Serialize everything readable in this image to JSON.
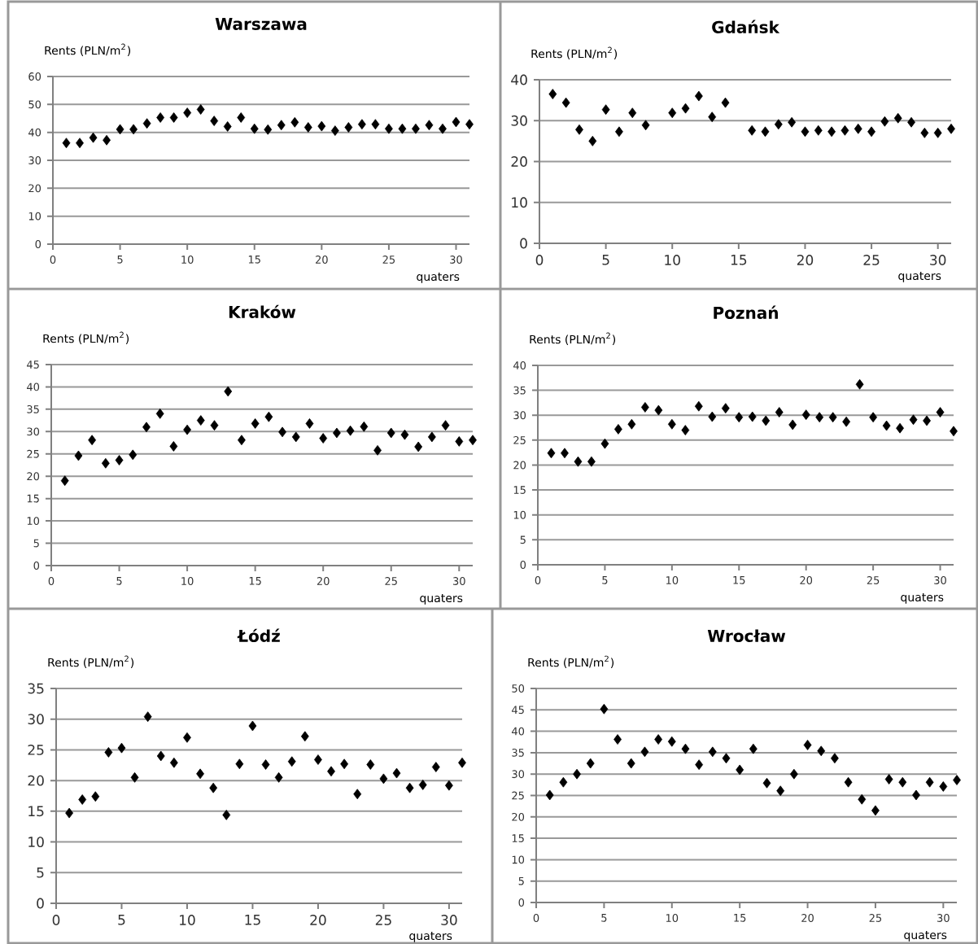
{
  "chart_data": [
    {
      "type": "scatter",
      "title": "Warszawa",
      "ylabel": "Rents (PLN/m$^{2}$)",
      "xlabel": "quaters",
      "color": "#000000",
      "marker": "diamond",
      "grid": "y",
      "xlim": [
        0,
        31
      ],
      "xticks": [
        0,
        5,
        10,
        15,
        20,
        25,
        30
      ],
      "ylim": [
        0,
        60
      ],
      "yticks": [
        0,
        10,
        20,
        30,
        40,
        50,
        60
      ],
      "x": [
        1,
        2,
        3,
        4,
        5,
        6,
        7,
        8,
        9,
        10,
        11,
        12,
        13,
        14,
        15,
        16,
        17,
        18,
        19,
        20,
        21,
        22,
        23,
        24,
        25,
        26,
        27,
        28,
        29,
        30,
        31
      ],
      "values": [
        36.2,
        36.2,
        38.1,
        37.2,
        41.1,
        41.1,
        43.2,
        45.3,
        45.3,
        47.0,
        48.2,
        44.1,
        42.1,
        45.3,
        41.3,
        41.0,
        42.6,
        43.6,
        41.8,
        42.2,
        40.6,
        41.8,
        42.9,
        42.9,
        41.3,
        41.3,
        41.3,
        42.6,
        41.3,
        43.7,
        42.9
      ]
    },
    {
      "type": "scatter",
      "title": "Gdańsk",
      "ylabel": "Rents (PLN/m$^{2}$)",
      "xlabel": "quaters",
      "color": "#000000",
      "marker": "diamond",
      "grid": "y",
      "xlim": [
        0,
        31
      ],
      "xticks": [
        0,
        5,
        10,
        15,
        20,
        25,
        30
      ],
      "ylim": [
        0,
        40
      ],
      "yticks": [
        0,
        10,
        20,
        30,
        40
      ],
      "x": [
        1,
        2,
        3,
        4,
        5,
        6,
        7,
        8,
        9,
        10,
        11,
        12,
        13,
        14,
        15,
        16,
        17,
        18,
        19,
        20,
        21,
        22,
        23,
        24,
        25,
        26,
        27,
        28,
        29,
        30,
        31
      ],
      "values": [
        36.5,
        34.4,
        27.8,
        25.0,
        32.7,
        27.3,
        31.9,
        28.9,
        null,
        31.9,
        33.0,
        36.0,
        30.9,
        34.4,
        null,
        27.6,
        27.3,
        29.1,
        29.6,
        27.3,
        27.6,
        27.3,
        27.6,
        28.0,
        27.3,
        29.8,
        30.6,
        29.6,
        27.0,
        27.0,
        28.0
      ]
    },
    {
      "type": "scatter",
      "title": "Kraków",
      "ylabel": "Rents (PLN/m$^{2}$)",
      "xlabel": "quaters",
      "color": "#000000",
      "marker": "diamond",
      "grid": "y",
      "xlim": [
        0,
        31
      ],
      "xticks": [
        0,
        5,
        10,
        15,
        20,
        25,
        30
      ],
      "ylim": [
        0,
        45
      ],
      "yticks": [
        0,
        5,
        10,
        15,
        20,
        25,
        30,
        35,
        40,
        45
      ],
      "x": [
        1,
        2,
        3,
        4,
        5,
        6,
        7,
        8,
        9,
        10,
        11,
        12,
        13,
        14,
        15,
        16,
        17,
        18,
        19,
        20,
        21,
        22,
        23,
        24,
        25,
        26,
        27,
        28,
        29,
        30,
        31
      ],
      "values": [
        19.0,
        24.6,
        28.1,
        22.9,
        23.6,
        24.8,
        31.0,
        34.0,
        26.7,
        30.4,
        32.5,
        31.4,
        39.0,
        28.1,
        31.8,
        33.3,
        29.9,
        28.8,
        31.8,
        28.5,
        29.7,
        30.2,
        31.1,
        25.8,
        29.7,
        29.3,
        26.6,
        28.8,
        31.4,
        27.8,
        28.1
      ]
    },
    {
      "type": "scatter",
      "title": "Poznań",
      "ylabel": "Rents (PLN/m$^{2}$)",
      "xlabel": "quaters",
      "color": "#000000",
      "marker": "diamond",
      "grid": "y",
      "xlim": [
        0,
        31
      ],
      "xticks": [
        0,
        5,
        10,
        15,
        20,
        25,
        30
      ],
      "ylim": [
        0,
        40
      ],
      "yticks": [
        0,
        5,
        10,
        15,
        20,
        25,
        30,
        35,
        40
      ],
      "x": [
        1,
        2,
        3,
        4,
        5,
        6,
        7,
        8,
        9,
        10,
        11,
        12,
        13,
        14,
        15,
        16,
        17,
        18,
        19,
        20,
        21,
        22,
        23,
        24,
        25,
        26,
        27,
        28,
        29,
        30,
        31
      ],
      "values": [
        22.4,
        22.4,
        20.7,
        20.7,
        24.3,
        27.2,
        28.2,
        31.6,
        31.0,
        28.2,
        27.0,
        31.8,
        29.7,
        31.4,
        29.6,
        29.7,
        28.9,
        30.6,
        28.1,
        30.1,
        29.6,
        29.6,
        28.7,
        36.2,
        29.6,
        27.9,
        27.4,
        29.1,
        28.9,
        30.6,
        26.8
      ]
    },
    {
      "type": "scatter",
      "title": "Łódź",
      "ylabel": "Rents (PLN/m$^{2}$)",
      "xlabel": "quaters",
      "color": "#000000",
      "marker": "diamond",
      "grid": "y",
      "xlim": [
        0,
        31
      ],
      "xticks": [
        0,
        5,
        10,
        15,
        20,
        25,
        30
      ],
      "ylim": [
        0,
        35
      ],
      "yticks": [
        0,
        5,
        10,
        15,
        20,
        25,
        30,
        35
      ],
      "x": [
        1,
        2,
        3,
        4,
        5,
        6,
        7,
        8,
        9,
        10,
        11,
        12,
        13,
        14,
        15,
        16,
        17,
        18,
        19,
        20,
        21,
        22,
        23,
        24,
        25,
        26,
        27,
        28,
        29,
        30,
        31
      ],
      "values": [
        14.7,
        16.9,
        17.4,
        24.6,
        25.3,
        20.5,
        30.4,
        24.0,
        22.9,
        27.0,
        21.1,
        18.8,
        14.4,
        22.7,
        28.9,
        22.6,
        20.5,
        23.1,
        27.2,
        23.4,
        21.5,
        22.7,
        17.8,
        22.6,
        20.3,
        21.2,
        18.8,
        19.3,
        22.2,
        19.2,
        22.9
      ]
    },
    {
      "type": "scatter",
      "title": "Wrocław",
      "ylabel": "Rents (PLN/m$^{2}$)",
      "xlabel": "quaters",
      "color": "#000000",
      "marker": "diamond",
      "grid": "y",
      "xlim": [
        0,
        31
      ],
      "xticks": [
        0,
        5,
        10,
        15,
        20,
        25,
        30
      ],
      "ylim": [
        0,
        50
      ],
      "yticks": [
        0,
        5,
        10,
        15,
        20,
        25,
        30,
        35,
        40,
        45,
        50
      ],
      "x": [
        1,
        2,
        3,
        4,
        5,
        6,
        7,
        8,
        9,
        10,
        11,
        12,
        13,
        14,
        15,
        16,
        17,
        18,
        19,
        20,
        21,
        22,
        23,
        24,
        25,
        26,
        27,
        28,
        29,
        30,
        31
      ],
      "values": [
        25.1,
        28.1,
        30.0,
        32.5,
        45.2,
        38.1,
        32.5,
        35.2,
        38.1,
        37.6,
        35.9,
        32.2,
        35.2,
        33.7,
        31.0,
        35.9,
        27.9,
        26.1,
        30.0,
        36.8,
        35.4,
        33.7,
        28.1,
        24.1,
        21.5,
        28.8,
        28.1,
        25.1,
        28.1,
        27.1,
        28.6
      ]
    }
  ]
}
